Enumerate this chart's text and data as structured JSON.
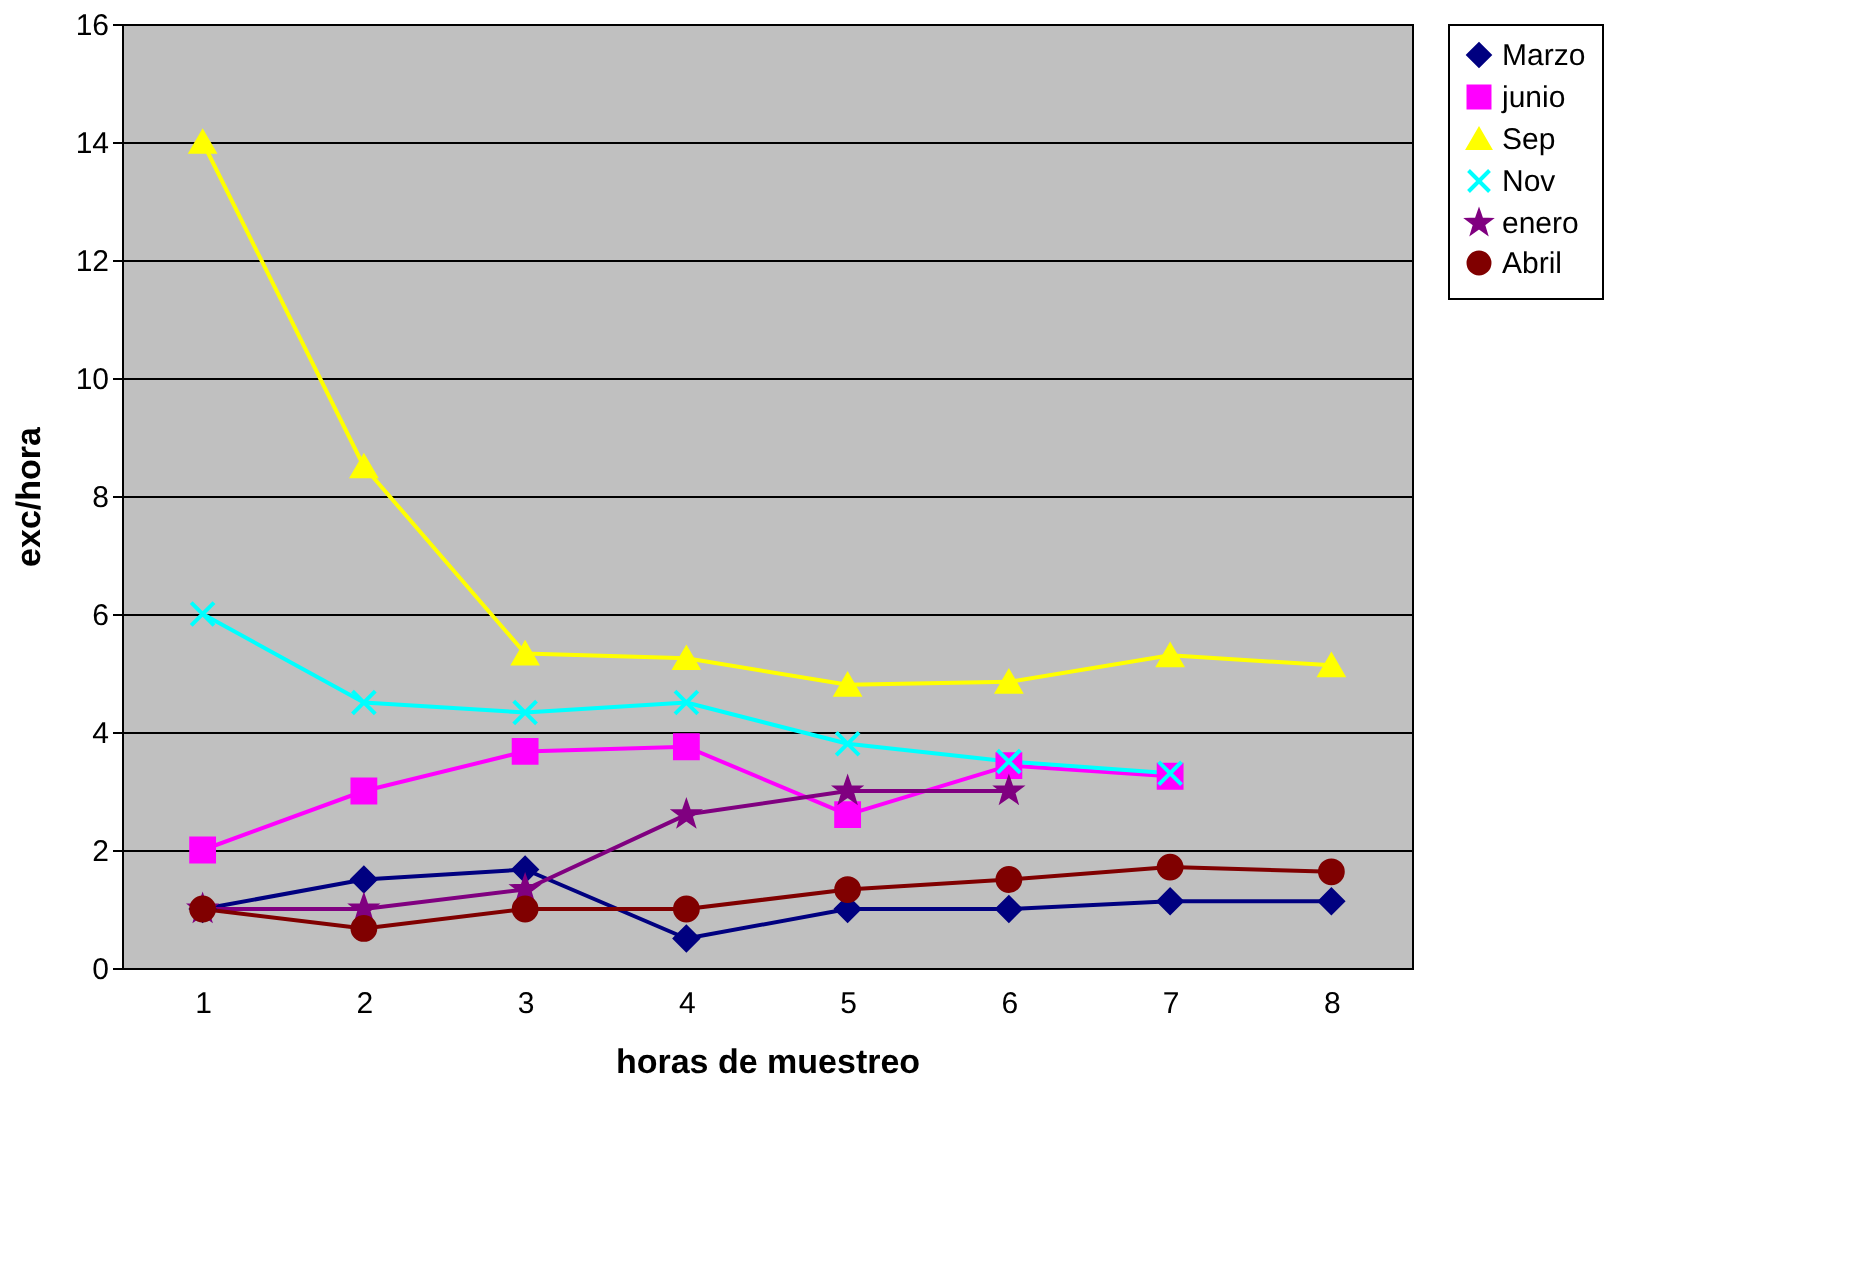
{
  "chart_data": {
    "type": "line",
    "xlabel": "horas de muestreo",
    "ylabel": "exc/hora",
    "categories": [
      "1",
      "2",
      "3",
      "4",
      "5",
      "6",
      "7",
      "8"
    ],
    "ylim": [
      0,
      16
    ],
    "yticks": [
      0,
      2,
      4,
      6,
      8,
      10,
      12,
      14,
      16
    ],
    "grid": "y",
    "legend": "right",
    "line_style": "solid",
    "series": [
      {
        "name": "Marzo",
        "color": "#000080",
        "marker": "diamond",
        "values": [
          1,
          1.5,
          1.67,
          0.5,
          1,
          1,
          1.13,
          1.13
        ]
      },
      {
        "name": "junio",
        "color": "#ff00ff",
        "marker": "square",
        "values": [
          2,
          3,
          3.67,
          3.75,
          2.6,
          3.43,
          3.25,
          null
        ]
      },
      {
        "name": "Sep",
        "color": "#ffff00",
        "marker": "triangle",
        "values": [
          14,
          8.5,
          5.33,
          5.25,
          4.8,
          4.85,
          5.3,
          5.13
        ]
      },
      {
        "name": "Nov",
        "color": "#00ffff",
        "marker": "cross",
        "values": [
          6,
          4.5,
          4.33,
          4.5,
          3.8,
          3.5,
          3.3,
          null
        ]
      },
      {
        "name": "enero",
        "color": "#800080",
        "marker": "star",
        "values": [
          1,
          1,
          1.33,
          2.6,
          3,
          3,
          null,
          null
        ]
      },
      {
        "name": "Abril",
        "color": "#800000",
        "marker": "circle",
        "values": [
          1,
          0.67,
          1,
          1,
          1.33,
          1.5,
          1.71,
          1.63
        ]
      }
    ]
  }
}
